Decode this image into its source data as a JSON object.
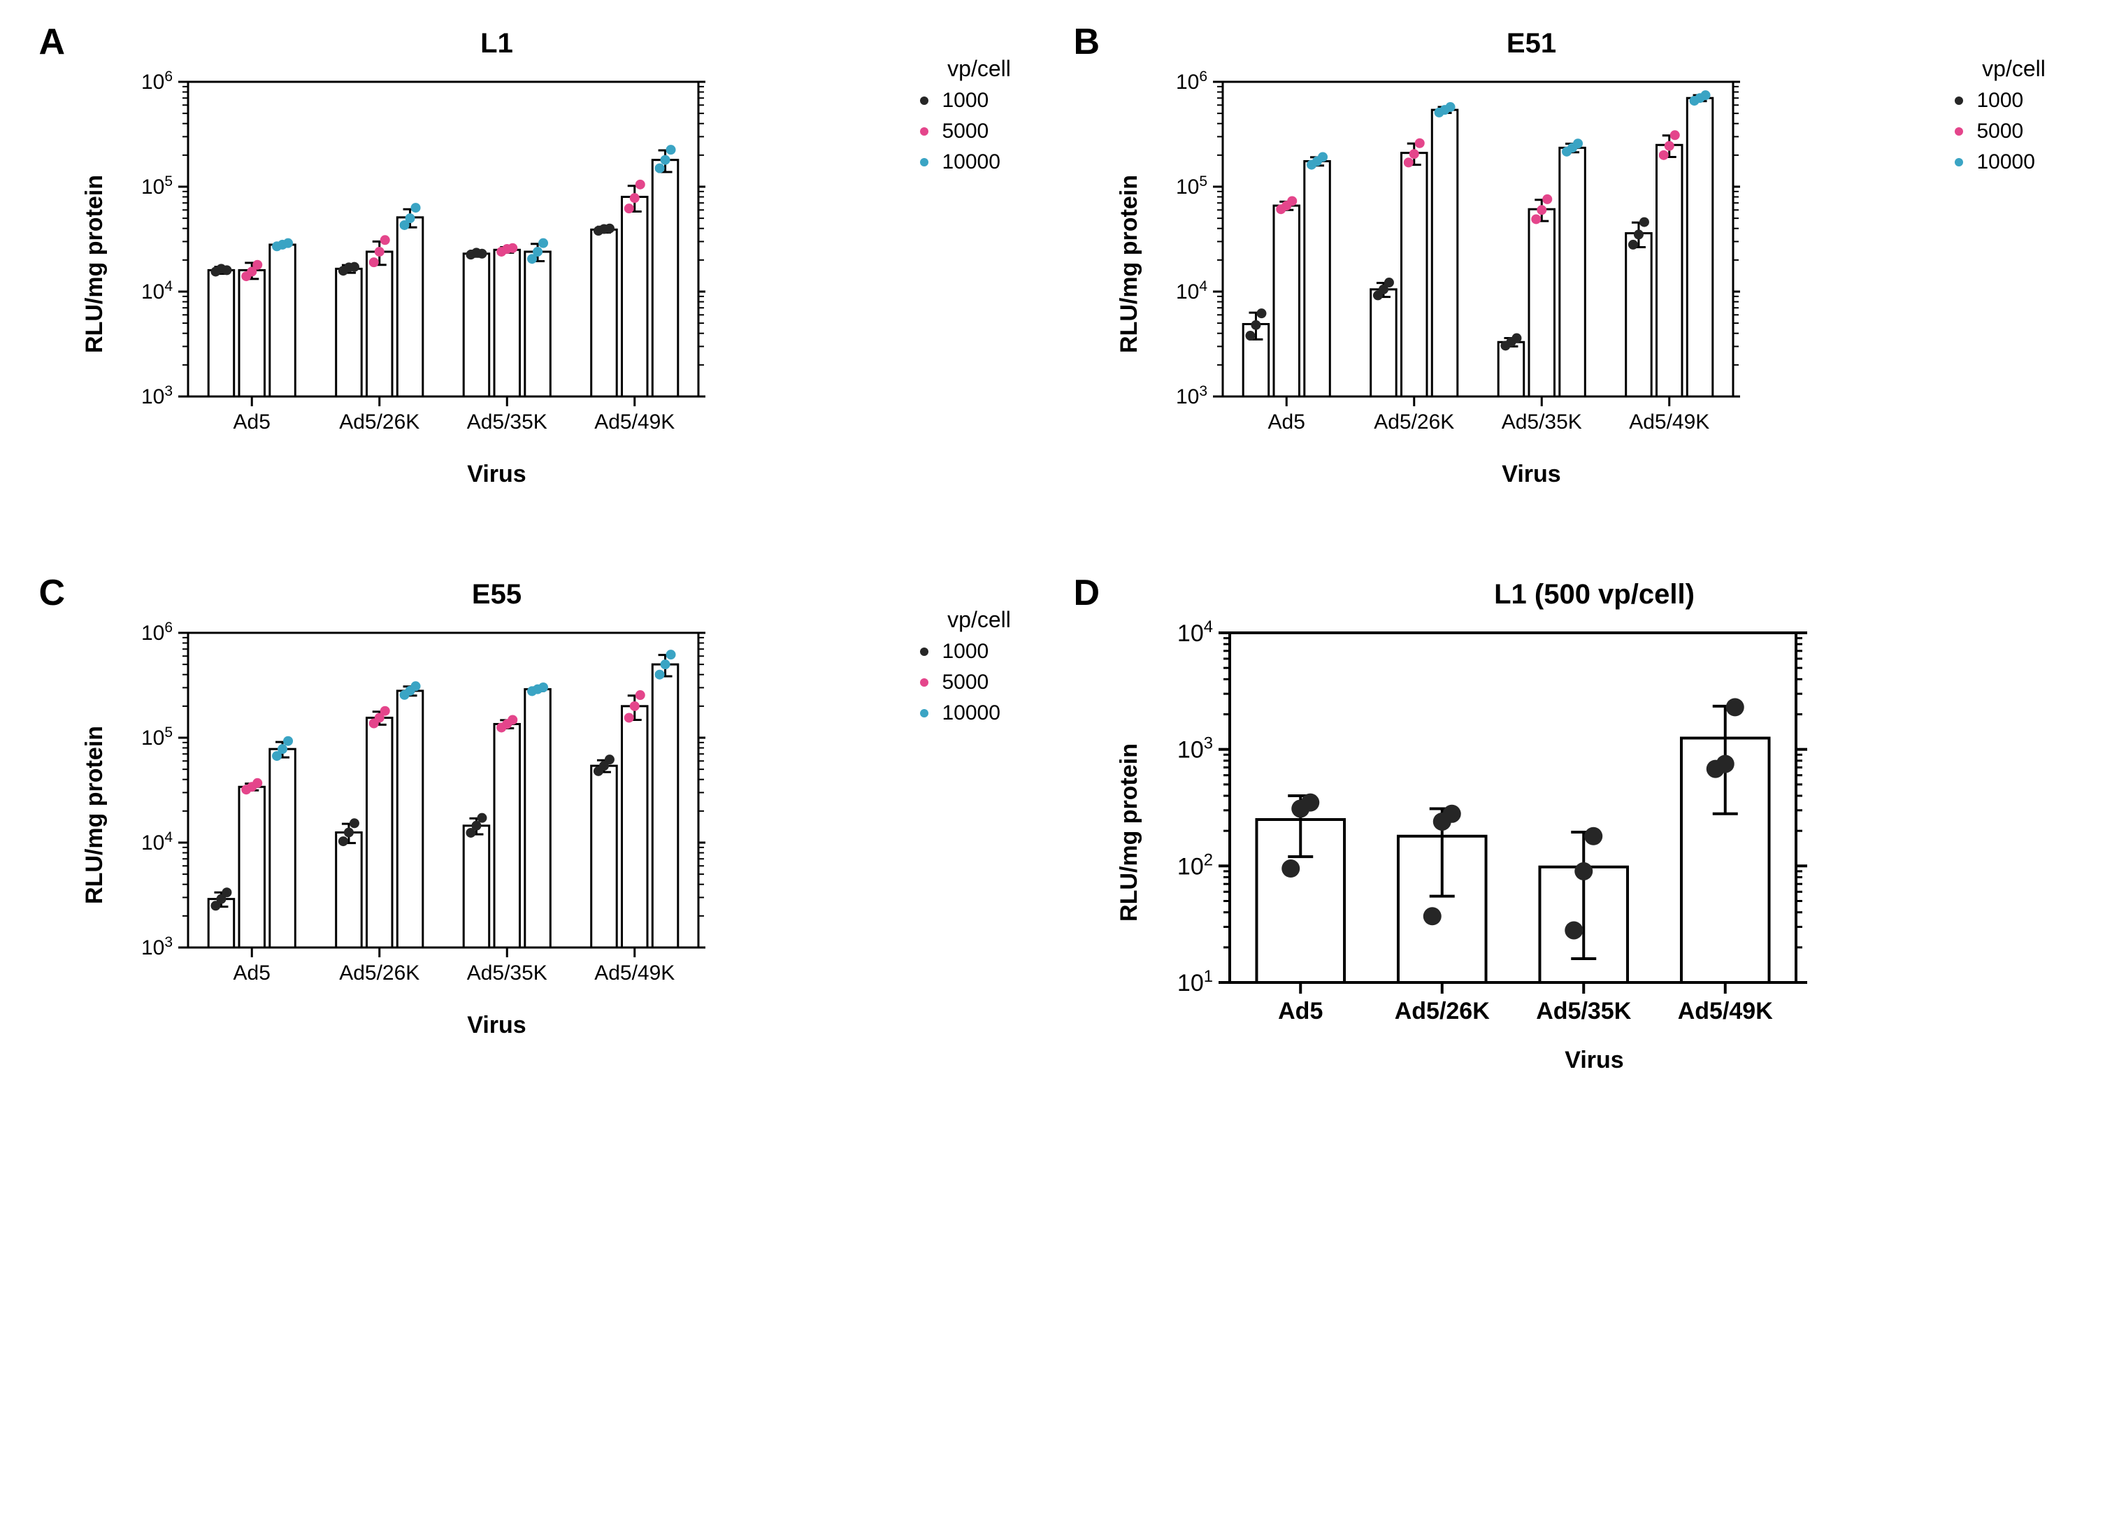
{
  "colors": {
    "axis": "#000000",
    "bar_fill": "#ffffff",
    "bar_stroke": "#000000",
    "text": "#000000",
    "dot_1000": "#262626",
    "dot_5000": "#e4458b",
    "dot_10000": "#3aa4c4"
  },
  "fonts": {
    "panel_letter_pt": 39,
    "title_pt": 30,
    "axis_label_pt": 26,
    "tick_pt": 22,
    "legend_pt": 22
  },
  "common": {
    "ylabel": "RLU/mg protein",
    "xlabel": "Virus",
    "legend_title": "vp/cell",
    "legend_items": [
      "1000",
      "5000",
      "10000"
    ],
    "categories": [
      "Ad5",
      "Ad5/26K",
      "Ad5/35K",
      "Ad5/49K"
    ]
  },
  "panels": {
    "A": {
      "letter": "A",
      "title": "L1",
      "type": "grouped-bar-log",
      "ylim": [
        1000,
        1000000
      ],
      "yticks": [
        1000,
        10000,
        100000,
        1000000
      ],
      "ytick_labels": [
        "10^3",
        "10^4",
        "10^5",
        "10^6"
      ],
      "show_legend": true,
      "series": {
        "1000": {
          "means": [
            16000,
            16500,
            23000,
            39000
          ],
          "err": [
            1200,
            1400,
            1500,
            2500
          ],
          "points": [
            [
              15500,
              16500,
              16000
            ],
            [
              15800,
              17000,
              17200
            ],
            [
              22500,
              23500,
              23000
            ],
            [
              38000,
              39500,
              40000
            ]
          ]
        },
        "5000": {
          "means": [
            16000,
            24000,
            25000,
            80000
          ],
          "err": [
            2800,
            6000,
            1500,
            22000
          ],
          "points": [
            [
              14000,
              15500,
              18000
            ],
            [
              19000,
              24000,
              31000
            ],
            [
              24000,
              25500,
              26000
            ],
            [
              62000,
              78000,
              105000
            ]
          ]
        },
        "10000": {
          "means": [
            28000,
            51000,
            24000,
            180000
          ],
          "err": [
            1200,
            10000,
            4500,
            42000
          ],
          "points": [
            [
              27000,
              28000,
              29000
            ],
            [
              43000,
              50000,
              63000
            ],
            [
              20500,
              24000,
              29000
            ],
            [
              150000,
              180000,
              225000
            ]
          ]
        }
      }
    },
    "B": {
      "letter": "B",
      "title": "E51",
      "type": "grouped-bar-log",
      "ylim": [
        1000,
        1000000
      ],
      "yticks": [
        1000,
        10000,
        100000,
        1000000
      ],
      "ytick_labels": [
        "10^3",
        "10^4",
        "10^5",
        "10^6"
      ],
      "show_legend": true,
      "series": {
        "1000": {
          "means": [
            4900,
            10500,
            3300,
            36000
          ],
          "err": [
            1400,
            1600,
            300,
            9500
          ],
          "points": [
            [
              3800,
              4800,
              6200
            ],
            [
              9200,
              10500,
              12200
            ],
            [
              3050,
              3300,
              3600
            ],
            [
              28000,
              35000,
              46000
            ]
          ]
        },
        "5000": {
          "means": [
            66000,
            210000,
            61000,
            250000
          ],
          "err": [
            6000,
            48000,
            14000,
            58000
          ],
          "points": [
            [
              61000,
              66000,
              73000
            ],
            [
              170000,
              205000,
              260000
            ],
            [
              49000,
              60000,
              76000
            ],
            [
              200000,
              245000,
              310000
            ]
          ]
        },
        "10000": {
          "means": [
            175000,
            540000,
            235000,
            700000
          ],
          "err": [
            16000,
            35000,
            22000,
            45000
          ],
          "points": [
            [
              162000,
              175000,
              192000
            ],
            [
              510000,
              540000,
              575000
            ],
            [
              216000,
              235000,
              258000
            ],
            [
              660000,
              700000,
              745000
            ]
          ]
        }
      }
    },
    "C": {
      "letter": "C",
      "title": "E55",
      "type": "grouped-bar-log",
      "ylim": [
        1000,
        1000000
      ],
      "yticks": [
        1000,
        10000,
        100000,
        1000000
      ],
      "ytick_labels": [
        "10^3",
        "10^4",
        "10^5",
        "10^6"
      ],
      "show_legend": true,
      "series": {
        "1000": {
          "means": [
            2900,
            12500,
            14500,
            54000
          ],
          "err": [
            450,
            2600,
            2500,
            7000
          ],
          "points": [
            [
              2500,
              2900,
              3350
            ],
            [
              10300,
              12500,
              15300
            ],
            [
              12400,
              14500,
              17200
            ],
            [
              48000,
              54000,
              62000
            ]
          ]
        },
        "5000": {
          "means": [
            34000,
            155000,
            135000,
            200000
          ],
          "err": [
            2500,
            22000,
            12000,
            52000
          ],
          "points": [
            [
              32000,
              34000,
              37000
            ],
            [
              137000,
              155000,
              180000
            ],
            [
              125000,
              135000,
              148000
            ],
            [
              155000,
              200000,
              255000
            ]
          ]
        },
        "10000": {
          "means": [
            78000,
            280000,
            290000,
            500000
          ],
          "err": [
            13000,
            28000,
            12000,
            115000
          ],
          "points": [
            [
              67000,
              78000,
              93000
            ],
            [
              256000,
              280000,
              310000
            ],
            [
              278000,
              290000,
              302000
            ],
            [
              400000,
              500000,
              620000
            ]
          ]
        }
      }
    },
    "D": {
      "letter": "D",
      "title": "L1 (500 vp/cell)",
      "type": "simple-bar-log",
      "ylim": [
        10,
        10000
      ],
      "yticks": [
        10,
        100,
        1000,
        10000
      ],
      "ytick_labels": [
        "10^1",
        "10^2",
        "10^3",
        "10^4"
      ],
      "show_legend": false,
      "categories": [
        "Ad5",
        "Ad5/26K",
        "Ad5/35K",
        "Ad5/49K"
      ],
      "means": [
        250,
        180,
        98,
        1250
      ],
      "err_low": [
        120,
        55,
        16,
        280
      ],
      "err_high": [
        400,
        310,
        195,
        2350
      ],
      "points": [
        [
          95,
          310,
          350
        ],
        [
          37,
          240,
          280
        ],
        [
          28,
          90,
          180
        ],
        [
          680,
          750,
          2300
        ]
      ]
    }
  }
}
